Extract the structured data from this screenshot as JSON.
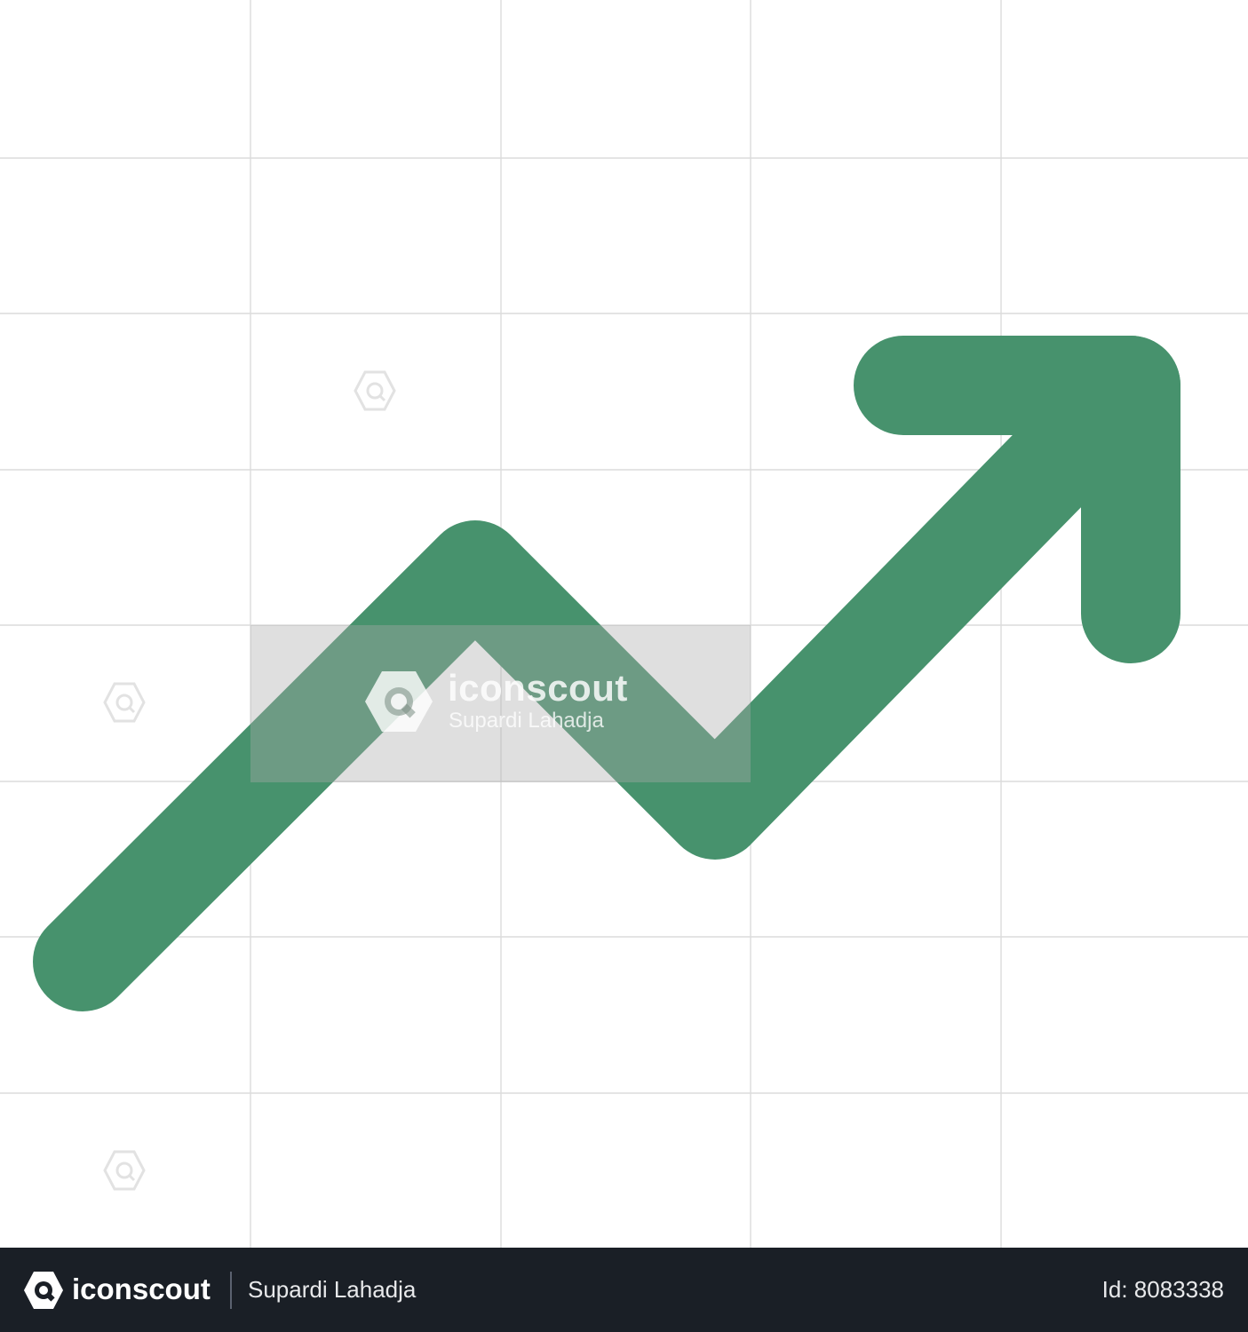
{
  "colors": {
    "arrow": "#47926d",
    "grid_line": "#dcdcdc",
    "footer_background": "#1a1f26",
    "watermark_icon": "#e8e8e8"
  },
  "icons": {
    "main": "trending-up-arrow-icon",
    "watermark": "iconscout-logo-icon"
  },
  "watermark": {
    "brand": "iconscout",
    "author": "Supardi Lahadja"
  },
  "footer": {
    "brand": "iconscout",
    "author": "Supardi Lahadja",
    "id_text": "Id: 8083338"
  }
}
